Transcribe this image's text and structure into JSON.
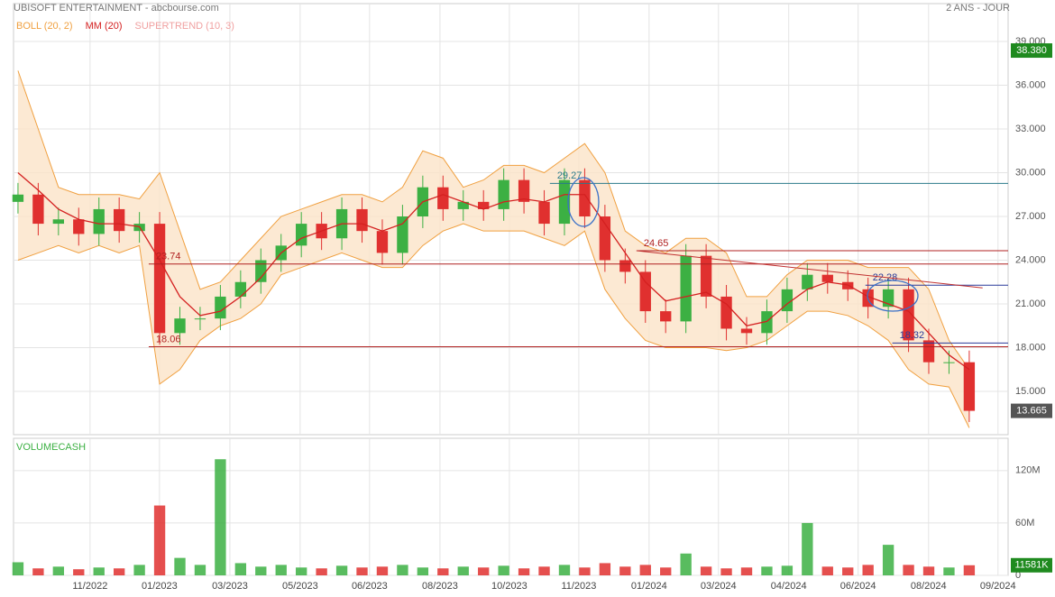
{
  "chart_data": {
    "type": "candlestick",
    "title": "UBISOFT ENTERTAINMENT - abcbourse.com",
    "period": "2 ANS - JOUR",
    "indicators": [
      {
        "label": "BOLL (20, 2)",
        "color": "#f0a040"
      },
      {
        "label": "MM (20)",
        "color": "#d42020"
      },
      {
        "label": "SUPERTREND (10, 3)",
        "color": "#f0a0a0"
      }
    ],
    "volume_title": "VOLUMECASH",
    "x": [
      0,
      1,
      2,
      3,
      4,
      5,
      6,
      7,
      8,
      9,
      10,
      11,
      12,
      13,
      14,
      15,
      16,
      17,
      18,
      19,
      20,
      21,
      22,
      23,
      24,
      25,
      26,
      27,
      28,
      29,
      30,
      31,
      32,
      33,
      34,
      35,
      36,
      37,
      38,
      39,
      40,
      41,
      42,
      43,
      44,
      45,
      46,
      47
    ],
    "open": [
      28.0,
      28.5,
      26.5,
      26.8,
      25.8,
      27.5,
      26.0,
      26.5,
      19.0,
      20.0,
      20.0,
      21.5,
      22.5,
      24.0,
      25.0,
      26.5,
      25.5,
      27.5,
      26.0,
      24.5,
      27.0,
      29.0,
      27.5,
      28.0,
      27.5,
      29.5,
      28.0,
      26.5,
      29.5,
      27.0,
      24.0,
      23.2,
      20.5,
      19.8,
      24.3,
      21.5,
      19.3,
      19.0,
      20.5,
      22.0,
      23.0,
      22.5,
      22.0,
      20.8,
      22.0,
      18.5,
      17.0,
      17.0
    ],
    "high": [
      29.3,
      29.3,
      27.6,
      27.6,
      28.3,
      28.3,
      27.3,
      27.3,
      20.8,
      20.8,
      22.3,
      23.3,
      24.8,
      25.8,
      27.3,
      27.3,
      28.3,
      28.3,
      26.8,
      27.8,
      29.8,
      29.8,
      28.8,
      28.8,
      30.3,
      30.3,
      28.8,
      30.3,
      30.3,
      27.8,
      24.8,
      24.0,
      21.3,
      25.1,
      25.1,
      22.3,
      20.1,
      21.3,
      22.8,
      23.8,
      23.8,
      23.3,
      22.8,
      22.8,
      22.8,
      19.3,
      17.8,
      17.8
    ],
    "low": [
      27.2,
      25.7,
      25.7,
      25.0,
      25.0,
      25.2,
      25.2,
      18.2,
      18.2,
      19.2,
      19.2,
      20.7,
      21.7,
      23.2,
      24.2,
      24.7,
      24.7,
      25.2,
      23.7,
      23.7,
      26.2,
      26.7,
      26.7,
      26.7,
      26.7,
      27.2,
      25.7,
      25.7,
      26.2,
      23.2,
      22.4,
      19.7,
      19.0,
      19.0,
      20.7,
      18.5,
      18.2,
      18.2,
      19.7,
      21.2,
      21.7,
      21.2,
      20.0,
      20.0,
      17.7,
      16.2,
      16.2,
      12.9
    ],
    "close": [
      28.5,
      26.5,
      26.8,
      25.8,
      27.5,
      26.0,
      26.5,
      19.0,
      20.0,
      20.0,
      21.5,
      22.5,
      24.0,
      25.0,
      26.5,
      25.5,
      27.5,
      26.0,
      24.5,
      27.0,
      29.0,
      27.5,
      28.0,
      27.5,
      29.5,
      28.0,
      26.5,
      29.5,
      27.0,
      24.0,
      23.2,
      20.5,
      19.8,
      24.3,
      21.5,
      19.3,
      19.0,
      20.5,
      22.0,
      23.0,
      22.5,
      22.0,
      20.8,
      22.0,
      18.5,
      17.0,
      17.0,
      13.665
    ],
    "boll_upper": [
      37,
      33,
      29,
      28.5,
      28.5,
      28.5,
      28.2,
      30,
      26,
      22,
      22.5,
      24,
      25.5,
      27,
      27.5,
      28,
      28.5,
      28.5,
      28,
      29,
      31.5,
      31,
      29,
      29.5,
      30.5,
      30.5,
      30,
      31,
      32,
      30,
      26,
      25,
      24.5,
      25.5,
      25.5,
      24.5,
      21.5,
      21.5,
      23,
      24,
      24,
      24,
      23.5,
      23.5,
      23.5,
      22.0,
      18.5,
      16.5
    ],
    "boll_lower": [
      24,
      24.5,
      25,
      24.5,
      25,
      24.5,
      25,
      15.5,
      16.5,
      18.5,
      19.5,
      20,
      21,
      23,
      23.5,
      24,
      24.5,
      24,
      23.5,
      23.5,
      25,
      26,
      26.5,
      26,
      26,
      26,
      25.5,
      25,
      26,
      22,
      20,
      18.5,
      18,
      18,
      18,
      17.8,
      18,
      18.5,
      19.5,
      20.5,
      20.5,
      20.2,
      19.5,
      18.5,
      16.5,
      15.5,
      15.3,
      12.5
    ],
    "mm": [
      30,
      28.8,
      27.5,
      26.8,
      26.5,
      26.5,
      26.3,
      24,
      21.5,
      20.2,
      20.5,
      21.5,
      22.8,
      24.5,
      25.5,
      26,
      26.5,
      26.5,
      26,
      26.5,
      28,
      28.5,
      28,
      27.5,
      28,
      28.2,
      28,
      28.5,
      28.5,
      26.5,
      24.5,
      22.5,
      21.2,
      21.5,
      21.8,
      21,
      19.5,
      19.8,
      21,
      22,
      22.5,
      22.3,
      21.5,
      21,
      20.5,
      19,
      17.5,
      16.5
    ],
    "volume": [
      15,
      8,
      10,
      7,
      9,
      8,
      12,
      80,
      20,
      12,
      133,
      14,
      10,
      12,
      9,
      8,
      11,
      9,
      10,
      12,
      9,
      8,
      10,
      9,
      11,
      8,
      10,
      12,
      9,
      14,
      10,
      12,
      9,
      25,
      10,
      8,
      9,
      10,
      11,
      60,
      10,
      9,
      12,
      35,
      12,
      10,
      9,
      11.581
    ],
    "up_color": "#3cb043",
    "down_color": "#e0302f",
    "xlim": [
      -0.22,
      48.92
    ],
    "xticks": [
      {
        "value": 3.56,
        "label": "11/2022"
      },
      {
        "value": 6.99,
        "label": "01/2023"
      },
      {
        "value": 10.47,
        "label": "03/2023"
      },
      {
        "value": 13.94,
        "label": "05/2023"
      },
      {
        "value": 17.37,
        "label": "06/2023"
      },
      {
        "value": 20.85,
        "label": "08/2023"
      },
      {
        "value": 24.28,
        "label": "10/2023"
      },
      {
        "value": 27.71,
        "label": "11/2023"
      },
      {
        "value": 31.18,
        "label": "01/2024"
      },
      {
        "value": 34.61,
        "label": "03/2024"
      },
      {
        "value": 38.08,
        "label": "04/2024"
      },
      {
        "value": 41.51,
        "label": "06/2024"
      },
      {
        "value": 44.99,
        "label": "08/2024"
      },
      {
        "value": 48.42,
        "label": "09/2024"
      }
    ],
    "ylim": [
      12.03,
      41.6
    ],
    "yticks": [
      {
        "value": 15,
        "label": "15.000"
      },
      {
        "value": 18,
        "label": "18.000"
      },
      {
        "value": 21,
        "label": "21.000"
      },
      {
        "value": 24,
        "label": "24.000"
      },
      {
        "value": 27,
        "label": "27.000"
      },
      {
        "value": 30,
        "label": "30.000"
      },
      {
        "value": 33,
        "label": "33.000"
      },
      {
        "value": 36,
        "label": "36.000"
      },
      {
        "value": 39,
        "label": "39.000"
      }
    ],
    "volume_ylim": [
      0,
      157
    ],
    "volume_yticks": [
      0,
      {
        "value": 60,
        "label": "60M"
      },
      {
        "value": 120,
        "label": "120M"
      }
    ],
    "levels": [
      {
        "value": 29.27,
        "label": "29.27",
        "start": 26.28,
        "color": "#2a7a8a"
      },
      {
        "value": 24.65,
        "label": "24.65",
        "start": 30.56,
        "color": "#b02020"
      },
      {
        "value": 23.74,
        "label": "23.74",
        "start": 6.46,
        "color": "#b02020"
      },
      {
        "value": 22.28,
        "label": "22.28",
        "start": 41.87,
        "color": "#2a3a9a"
      },
      {
        "value": 18.32,
        "label": "18.32",
        "start": 43.2,
        "color": "#2a3a9a"
      },
      {
        "value": 18.06,
        "label": "18.06",
        "start": 6.46,
        "color": "#b02020"
      }
    ],
    "trendline": {
      "x": [
        30.56,
        47.66
      ],
      "y": [
        24.65,
        22.1
      ],
      "color": "#c03030"
    },
    "price_badges": [
      {
        "value": 38.38,
        "label": "38.380",
        "color": "#1f8a1f"
      },
      {
        "value": 13.665,
        "label": "13.665",
        "color": "#555555"
      }
    ],
    "volume_badge": {
      "value": 11.581,
      "label": "11581K",
      "color": "#1f8a1f"
    }
  }
}
